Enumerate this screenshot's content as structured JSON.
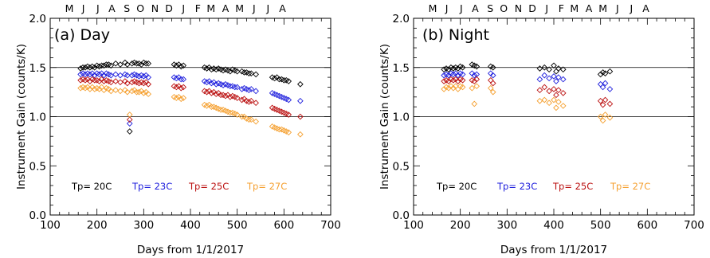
{
  "chart_data": [
    {
      "type": "scatter",
      "title": "(a) Day",
      "xlabel": "Days from 1/1/2017",
      "ylabel": "Instrument Gain (counts/K)",
      "xlim": [
        100,
        700
      ],
      "ylim": [
        0.0,
        2.0
      ],
      "xticks": [
        "100",
        "200",
        "300",
        "400",
        "500",
        "600",
        "700"
      ],
      "yticks": [
        "0.0",
        "0.5",
        "1.0",
        "1.5",
        "2.0"
      ],
      "reference_lines": [
        1.0,
        1.5
      ],
      "month_labels": [
        "M",
        "J",
        "J",
        "A",
        "S",
        "O",
        "N",
        "D",
        "J",
        "F",
        "M",
        "A",
        "M",
        "J",
        "J",
        "A"
      ],
      "month_positions": [
        141,
        171,
        202,
        232,
        264,
        293,
        324,
        354,
        385,
        416,
        444,
        475,
        505,
        536,
        566,
        597
      ],
      "marker": "diamond-open",
      "legend_placement": "bottom",
      "series": [
        {
          "name": "Tp= 20C",
          "color": "#000000",
          "x": [
            165,
            170,
            175,
            180,
            185,
            190,
            195,
            200,
            205,
            210,
            215,
            220,
            225,
            230,
            240,
            250,
            260,
            265,
            270,
            275,
            280,
            285,
            290,
            295,
            300,
            305,
            310,
            365,
            370,
            375,
            380,
            385,
            430,
            435,
            440,
            445,
            450,
            455,
            460,
            465,
            470,
            475,
            480,
            485,
            490,
            495,
            500,
            510,
            515,
            520,
            525,
            530,
            540,
            575,
            580,
            585,
            590,
            595,
            600,
            605,
            610,
            635
          ],
          "y": [
            1.49,
            1.5,
            1.5,
            1.51,
            1.5,
            1.51,
            1.5,
            1.52,
            1.51,
            1.52,
            1.52,
            1.53,
            1.53,
            1.52,
            1.54,
            1.53,
            1.55,
            1.53,
            0.85,
            1.54,
            1.55,
            1.54,
            1.54,
            1.53,
            1.55,
            1.54,
            1.54,
            1.53,
            1.52,
            1.53,
            1.51,
            1.52,
            1.5,
            1.49,
            1.5,
            1.48,
            1.49,
            1.48,
            1.49,
            1.48,
            1.47,
            1.48,
            1.47,
            1.46,
            1.48,
            1.47,
            1.46,
            1.46,
            1.45,
            1.45,
            1.44,
            1.44,
            1.43,
            1.4,
            1.39,
            1.4,
            1.38,
            1.38,
            1.37,
            1.37,
            1.36,
            1.33
          ]
        },
        {
          "name": "Tp= 23C",
          "color": "#2020dd",
          "x": [
            165,
            170,
            175,
            180,
            185,
            190,
            195,
            200,
            205,
            210,
            215,
            220,
            225,
            230,
            240,
            250,
            260,
            265,
            270,
            275,
            280,
            285,
            290,
            295,
            300,
            305,
            310,
            365,
            370,
            375,
            380,
            385,
            430,
            435,
            440,
            445,
            450,
            455,
            460,
            465,
            470,
            475,
            480,
            485,
            490,
            495,
            500,
            510,
            515,
            520,
            525,
            530,
            540,
            575,
            580,
            585,
            590,
            595,
            600,
            605,
            610,
            635
          ],
          "y": [
            1.43,
            1.44,
            1.43,
            1.44,
            1.43,
            1.44,
            1.42,
            1.44,
            1.43,
            1.44,
            1.42,
            1.44,
            1.43,
            1.42,
            1.43,
            1.42,
            1.43,
            1.42,
            0.93,
            1.42,
            1.43,
            1.42,
            1.41,
            1.42,
            1.41,
            1.42,
            1.4,
            1.4,
            1.39,
            1.4,
            1.38,
            1.38,
            1.36,
            1.35,
            1.36,
            1.34,
            1.35,
            1.33,
            1.34,
            1.33,
            1.32,
            1.33,
            1.32,
            1.31,
            1.31,
            1.3,
            1.3,
            1.28,
            1.29,
            1.28,
            1.27,
            1.28,
            1.26,
            1.24,
            1.23,
            1.22,
            1.21,
            1.2,
            1.19,
            1.18,
            1.17,
            1.16
          ]
        },
        {
          "name": "Tp= 25C",
          "color": "#bb1111",
          "x": [
            165,
            170,
            175,
            180,
            185,
            190,
            195,
            200,
            205,
            210,
            215,
            220,
            225,
            230,
            240,
            250,
            260,
            265,
            270,
            275,
            280,
            285,
            290,
            295,
            300,
            305,
            310,
            365,
            370,
            375,
            380,
            385,
            430,
            435,
            440,
            445,
            450,
            455,
            460,
            465,
            470,
            475,
            480,
            485,
            490,
            495,
            500,
            510,
            515,
            520,
            525,
            530,
            540,
            575,
            580,
            585,
            590,
            595,
            600,
            605,
            610,
            635
          ],
          "y": [
            1.37,
            1.38,
            1.37,
            1.38,
            1.36,
            1.38,
            1.37,
            1.37,
            1.36,
            1.38,
            1.36,
            1.37,
            1.36,
            1.35,
            1.36,
            1.35,
            1.36,
            1.34,
            0.97,
            1.35,
            1.36,
            1.35,
            1.34,
            1.35,
            1.34,
            1.35,
            1.33,
            1.31,
            1.3,
            1.31,
            1.29,
            1.3,
            1.26,
            1.25,
            1.26,
            1.24,
            1.25,
            1.23,
            1.24,
            1.22,
            1.22,
            1.21,
            1.22,
            1.2,
            1.21,
            1.2,
            1.19,
            1.17,
            1.18,
            1.16,
            1.15,
            1.16,
            1.14,
            1.09,
            1.08,
            1.07,
            1.06,
            1.05,
            1.04,
            1.03,
            1.02,
            1.0
          ]
        },
        {
          "name": "Tp= 27C",
          "color": "#f5a030",
          "x": [
            165,
            170,
            175,
            180,
            185,
            190,
            195,
            200,
            205,
            210,
            215,
            220,
            225,
            230,
            240,
            250,
            260,
            265,
            270,
            275,
            280,
            285,
            290,
            295,
            300,
            305,
            310,
            365,
            370,
            375,
            380,
            385,
            430,
            435,
            440,
            445,
            450,
            455,
            460,
            465,
            470,
            475,
            480,
            485,
            490,
            495,
            500,
            510,
            515,
            520,
            525,
            530,
            540,
            575,
            580,
            585,
            590,
            595,
            600,
            605,
            610,
            635
          ],
          "y": [
            1.29,
            1.3,
            1.29,
            1.3,
            1.28,
            1.3,
            1.28,
            1.29,
            1.28,
            1.3,
            1.27,
            1.29,
            1.28,
            1.26,
            1.27,
            1.26,
            1.27,
            1.25,
            1.02,
            1.26,
            1.27,
            1.25,
            1.25,
            1.26,
            1.24,
            1.25,
            1.23,
            1.2,
            1.19,
            1.2,
            1.18,
            1.19,
            1.12,
            1.11,
            1.12,
            1.1,
            1.1,
            1.09,
            1.08,
            1.07,
            1.07,
            1.06,
            1.05,
            1.04,
            1.04,
            1.03,
            1.02,
            1.0,
            1.0,
            0.98,
            0.97,
            0.97,
            0.95,
            0.9,
            0.89,
            0.88,
            0.87,
            0.87,
            0.86,
            0.85,
            0.84,
            0.82
          ]
        }
      ]
    },
    {
      "type": "scatter",
      "title": "(b) Night",
      "xlabel": "Days from 1/1/2017",
      "ylabel": "Instrument Gain (counts/K)",
      "xlim": [
        100,
        700
      ],
      "ylim": [
        0.0,
        2.0
      ],
      "xticks": [
        "100",
        "200",
        "300",
        "400",
        "500",
        "600",
        "700"
      ],
      "yticks": [
        "0.0",
        "0.5",
        "1.0",
        "1.5",
        "2.0"
      ],
      "reference_lines": [
        1.0,
        1.5
      ],
      "month_labels": [
        "M",
        "J",
        "J",
        "A",
        "S",
        "O",
        "N",
        "D",
        "J",
        "F",
        "M",
        "A",
        "M",
        "J",
        "J",
        "A"
      ],
      "month_positions": [
        141,
        171,
        202,
        232,
        264,
        293,
        324,
        354,
        385,
        416,
        444,
        475,
        505,
        536,
        566,
        597
      ],
      "marker": "diamond-open",
      "legend_placement": "bottom",
      "series": [
        {
          "name": "Tp= 20C",
          "color": "#000000",
          "x": [
            165,
            170,
            175,
            180,
            185,
            190,
            195,
            200,
            205,
            225,
            230,
            235,
            265,
            270,
            370,
            380,
            390,
            400,
            405,
            410,
            420,
            500,
            505,
            510,
            520
          ],
          "y": [
            1.48,
            1.49,
            1.48,
            1.5,
            1.49,
            1.5,
            1.49,
            1.51,
            1.5,
            1.53,
            1.52,
            1.51,
            1.51,
            1.5,
            1.49,
            1.5,
            1.48,
            1.52,
            1.46,
            1.49,
            1.48,
            1.43,
            1.45,
            1.44,
            1.46
          ]
        },
        {
          "name": "Tp= 23C",
          "color": "#2020dd",
          "x": [
            165,
            170,
            175,
            180,
            185,
            190,
            195,
            200,
            205,
            225,
            230,
            235,
            265,
            270,
            370,
            380,
            390,
            400,
            405,
            410,
            420,
            500,
            505,
            510,
            520
          ],
          "y": [
            1.42,
            1.43,
            1.42,
            1.44,
            1.43,
            1.44,
            1.42,
            1.44,
            1.43,
            1.44,
            1.42,
            1.43,
            1.44,
            1.42,
            1.38,
            1.42,
            1.39,
            1.41,
            1.36,
            1.4,
            1.38,
            1.33,
            1.3,
            1.34,
            1.28
          ]
        },
        {
          "name": "Tp= 25C",
          "color": "#bb1111",
          "x": [
            165,
            170,
            175,
            180,
            185,
            190,
            195,
            200,
            205,
            225,
            230,
            235,
            265,
            270,
            370,
            380,
            390,
            400,
            405,
            410,
            420,
            500,
            505,
            510,
            520
          ],
          "y": [
            1.36,
            1.37,
            1.36,
            1.38,
            1.37,
            1.38,
            1.36,
            1.38,
            1.37,
            1.37,
            1.36,
            1.38,
            1.37,
            1.34,
            1.27,
            1.3,
            1.26,
            1.28,
            1.22,
            1.27,
            1.24,
            1.16,
            1.12,
            1.17,
            1.13
          ]
        },
        {
          "name": "Tp= 27C",
          "color": "#f5a030",
          "x": [
            165,
            170,
            175,
            180,
            185,
            190,
            195,
            200,
            205,
            225,
            230,
            235,
            265,
            270,
            370,
            380,
            390,
            400,
            405,
            410,
            420,
            500,
            505,
            510,
            520
          ],
          "y": [
            1.28,
            1.3,
            1.29,
            1.31,
            1.29,
            1.31,
            1.28,
            1.31,
            1.3,
            1.29,
            1.13,
            1.31,
            1.29,
            1.25,
            1.16,
            1.17,
            1.14,
            1.17,
            1.09,
            1.15,
            1.11,
            1.0,
            0.96,
            1.02,
            0.99
          ]
        }
      ]
    }
  ]
}
